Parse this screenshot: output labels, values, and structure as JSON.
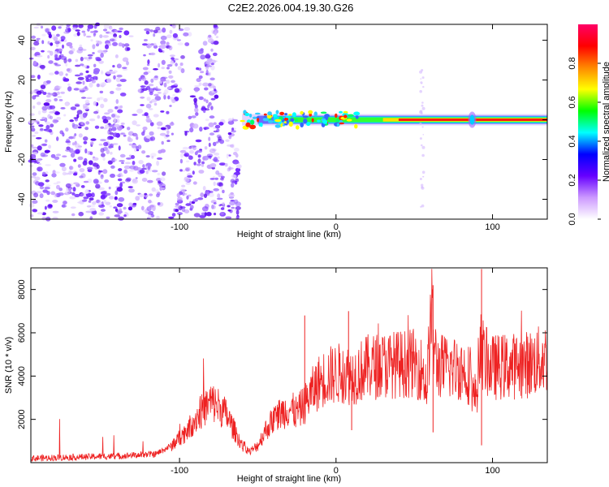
{
  "title": "C2E2.2026.004.19.30.G26",
  "chart_data": [
    {
      "type": "heatmap",
      "xlabel": "Height of straight line (km)",
      "ylabel": "Frequency (Hz)",
      "xlim": [
        -195,
        135
      ],
      "ylim": [
        -50,
        48
      ],
      "xticks": [
        -100,
        0,
        100
      ],
      "yticks": [
        -40,
        -20,
        0,
        20,
        40
      ],
      "colorbar": {
        "label": "Normalized spectral amplitude",
        "range": [
          0,
          1
        ],
        "ticks": [
          "0.0",
          "0.2",
          "0.4",
          "0.6",
          "0.8"
        ],
        "colormap": "rainbow",
        "colors": [
          "#ffffff",
          "#cc99ff",
          "#6600ff",
          "#0000ff",
          "#00ffff",
          "#00ff00",
          "#ffff00",
          "#ff8800",
          "#ff0000",
          "#ff0066"
        ]
      },
      "features": {
        "signal_band_frequency_hz": 0,
        "signal_band_start_km": -60,
        "signal_band_end_km": 135,
        "noise_region_end_km": -60
      }
    },
    {
      "type": "line",
      "xlabel": "Height of straight line (km)",
      "ylabel": "SNR (10 * v/v)",
      "xlim": [
        -195,
        135
      ],
      "ylim": [
        0,
        9000
      ],
      "xticks": [
        -100,
        0,
        100
      ],
      "yticks": [
        2000,
        4000,
        6000,
        8000
      ],
      "color": "#ee2222",
      "x": [
        -195,
        -170,
        -140,
        -115,
        -105,
        -95,
        -88,
        -80,
        -75,
        -70,
        -65,
        -60,
        -55,
        -50,
        -45,
        -40,
        -35,
        -30,
        -25,
        -20,
        -15,
        -12,
        -10,
        -5,
        0,
        5,
        10,
        15,
        20,
        30,
        40,
        50,
        55,
        58,
        61,
        63,
        65,
        70,
        80,
        86,
        88,
        90,
        92,
        95,
        100,
        110,
        120,
        130,
        135
      ],
      "y": [
        200,
        250,
        300,
        400,
        800,
        1500,
        2200,
        2800,
        2600,
        2200,
        1500,
        800,
        500,
        800,
        1500,
        2000,
        2300,
        2500,
        2300,
        2700,
        3300,
        3600,
        3800,
        4000,
        4100,
        4150,
        4000,
        4200,
        4400,
        4500,
        4550,
        4600,
        4300,
        3500,
        7000,
        5000,
        4500,
        4400,
        4350,
        4000,
        3000,
        3300,
        5500,
        4700,
        4400,
        4450,
        4500,
        4700,
        4900
      ]
    }
  ]
}
